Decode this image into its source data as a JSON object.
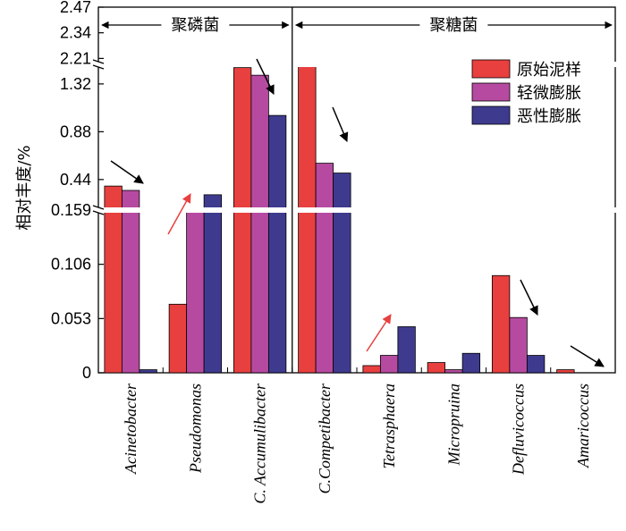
{
  "chart_data": {
    "type": "bar",
    "title": "",
    "xlabel": "",
    "ylabel": "相对丰度/%",
    "categories": [
      "Acinetobacter",
      "Pseudomonas",
      "C. Accumulibacter",
      "C.Competibacter",
      "Tetrasphaera",
      "Micropruina",
      "Defluvicoccus",
      "Amaricoccus"
    ],
    "series": [
      {
        "name": "原始泥样",
        "color": "#e8403f",
        "values": [
          0.38,
          0.067,
          1.47,
          2.19,
          0.007,
          0.01,
          0.095,
          0.003
        ]
      },
      {
        "name": "轻微膨胀",
        "color": "#b64aa0",
        "values": [
          0.34,
          0.159,
          1.4,
          0.59,
          0.017,
          0.003,
          0.054,
          0.0
        ]
      },
      {
        "name": "恶性膨胀",
        "color": "#3e3b8f",
        "values": [
          0.003,
          0.3,
          1.03,
          0.5,
          0.045,
          0.019,
          0.017,
          0.0
        ]
      }
    ],
    "y_axis_broken": true,
    "y_segments": [
      {
        "range": [
          0,
          0.159
        ],
        "ticks": [
          "0",
          "0.053",
          "0.106",
          "0.159"
        ]
      },
      {
        "range": [
          0.159,
          1.5
        ],
        "ticks": [
          "0.44",
          "0.88",
          "1.32"
        ]
      },
      {
        "range": [
          2.18,
          2.47
        ],
        "ticks": [
          "2.21",
          "2.34",
          "2.47"
        ]
      }
    ],
    "groups": [
      {
        "label": "聚磷菌",
        "categories": [
          "Acinetobacter",
          "Pseudomonas",
          "C. Accumulibacter"
        ]
      },
      {
        "label": "聚糖菌",
        "categories": [
          "C.Competibacter",
          "Tetrasphaera",
          "Micropruina",
          "Defluvicoccus",
          "Amaricoccus"
        ]
      }
    ],
    "trend_arrows": [
      {
        "category": "Acinetobacter",
        "direction": "down",
        "color": "#000000"
      },
      {
        "category": "Pseudomonas",
        "direction": "up",
        "color": "#e8403f"
      },
      {
        "category": "C. Accumulibacter",
        "direction": "down",
        "color": "#000000"
      },
      {
        "category": "C.Competibacter",
        "direction": "down",
        "color": "#000000"
      },
      {
        "category": "Tetrasphaera",
        "direction": "up",
        "color": "#e8403f"
      },
      {
        "category": "Defluvicoccus",
        "direction": "down",
        "color": "#000000"
      },
      {
        "category": "Amaricoccus",
        "direction": "down",
        "color": "#000000"
      }
    ],
    "legend_position": "top-right",
    "grid": false
  }
}
